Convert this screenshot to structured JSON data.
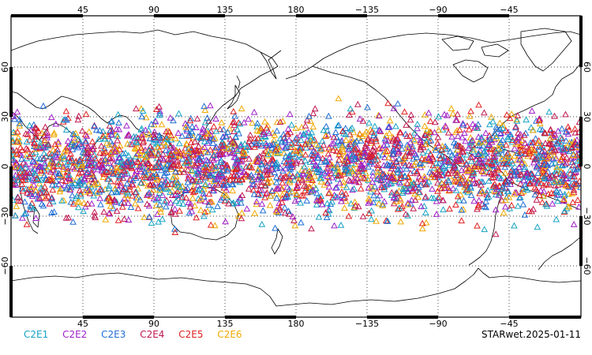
{
  "map": {
    "projection": "cylindrical",
    "central_longitude": 180,
    "grid": "dotted",
    "land_fill": "none",
    "marker_shape": "open-triangle",
    "top_lon_labels": [
      "45",
      "90",
      "135",
      "180",
      "−135",
      "−90",
      "−45"
    ],
    "bottom_lon_labels": [
      "45",
      "90",
      "135",
      "180",
      "−135",
      "−90",
      "−45"
    ],
    "left_lat_labels": [
      "60",
      "30",
      "0",
      "−30",
      "−60"
    ],
    "right_lat_labels": [
      "60",
      "30",
      "0",
      "−30",
      "−60"
    ]
  },
  "legend": [
    {
      "name": "C2E1",
      "color": "#17a3c4"
    },
    {
      "name": "C2E2",
      "color": "#a020c8"
    },
    {
      "name": "C2E3",
      "color": "#1f6ed4"
    },
    {
      "name": "C2E4",
      "color": "#c01850"
    },
    {
      "name": "C2E5",
      "color": "#e02020"
    },
    {
      "name": "C2E6",
      "color": "#f0a800"
    }
  ],
  "footer": {
    "label": "STARwet.2025-01-11"
  }
}
